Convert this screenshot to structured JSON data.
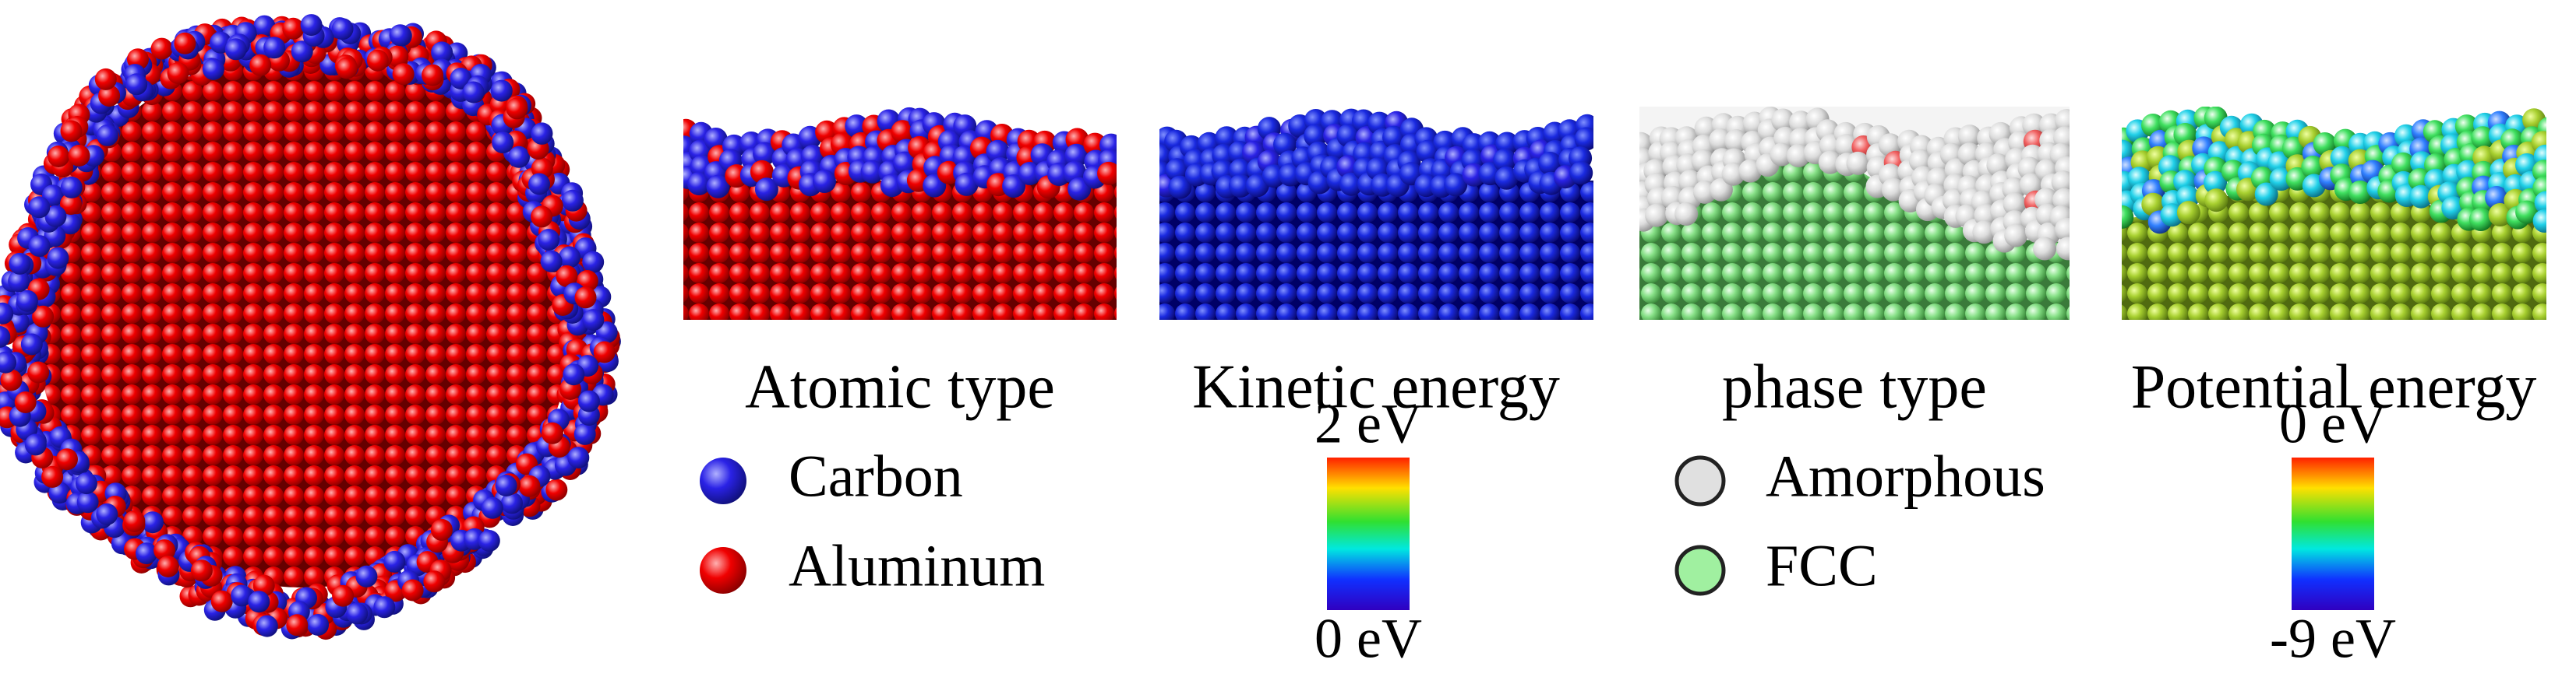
{
  "captions": [
    "Atomic type",
    "Kinetic energy",
    "phase type",
    "Potential energy"
  ],
  "atomic_legend": [
    "Carbon",
    "Aluminum"
  ],
  "kinetic_colorbar": {
    "max_label": "2 eV",
    "min_label": "0 eV"
  },
  "phase_legend": [
    "Amorphous",
    "FCC"
  ],
  "potential_colorbar": {
    "max_label": "0 eV",
    "min_label": "-9 eV"
  }
}
